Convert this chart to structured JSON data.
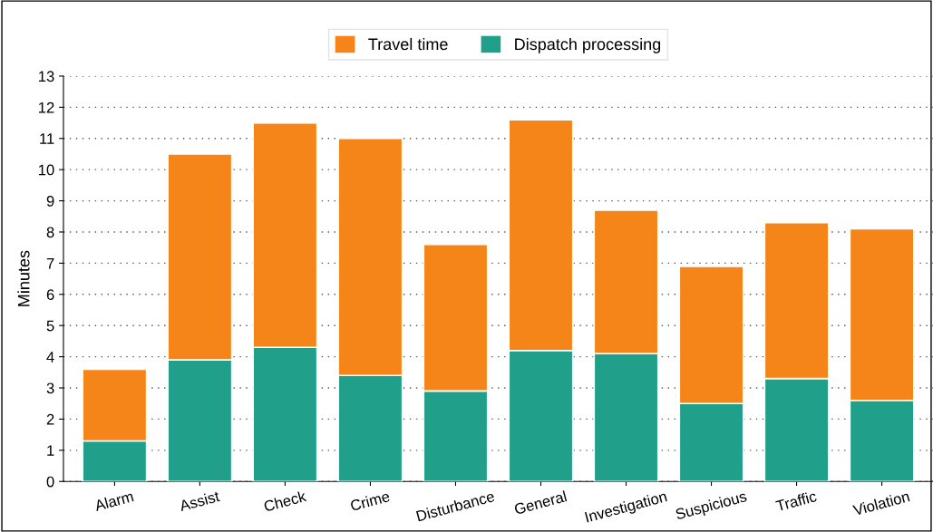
{
  "chart_data": {
    "type": "bar",
    "stacked": true,
    "ylabel": "Minutes",
    "categories": [
      "Alarm",
      "Assist",
      "Check",
      "Crime",
      "Disturbance",
      "General",
      "Investigation",
      "Suspicious",
      "Traffic",
      "Violation"
    ],
    "series": [
      {
        "name": "Dispatch processing",
        "color": "#20a08a",
        "values": [
          1.3,
          3.9,
          4.3,
          3.4,
          2.9,
          4.2,
          4.1,
          2.5,
          3.3,
          2.6
        ]
      },
      {
        "name": "Travel time",
        "color": "#f58518",
        "values": [
          2.3,
          6.6,
          7.2,
          7.6,
          4.7,
          7.4,
          4.6,
          4.4,
          5.0,
          5.5
        ]
      }
    ],
    "ylim": [
      0,
      13
    ],
    "yticks": [
      0,
      1,
      2,
      3,
      4,
      5,
      6,
      7,
      8,
      9,
      10,
      11,
      12,
      13
    ],
    "grid": "y",
    "legend": "top",
    "line_style": "dotted"
  }
}
